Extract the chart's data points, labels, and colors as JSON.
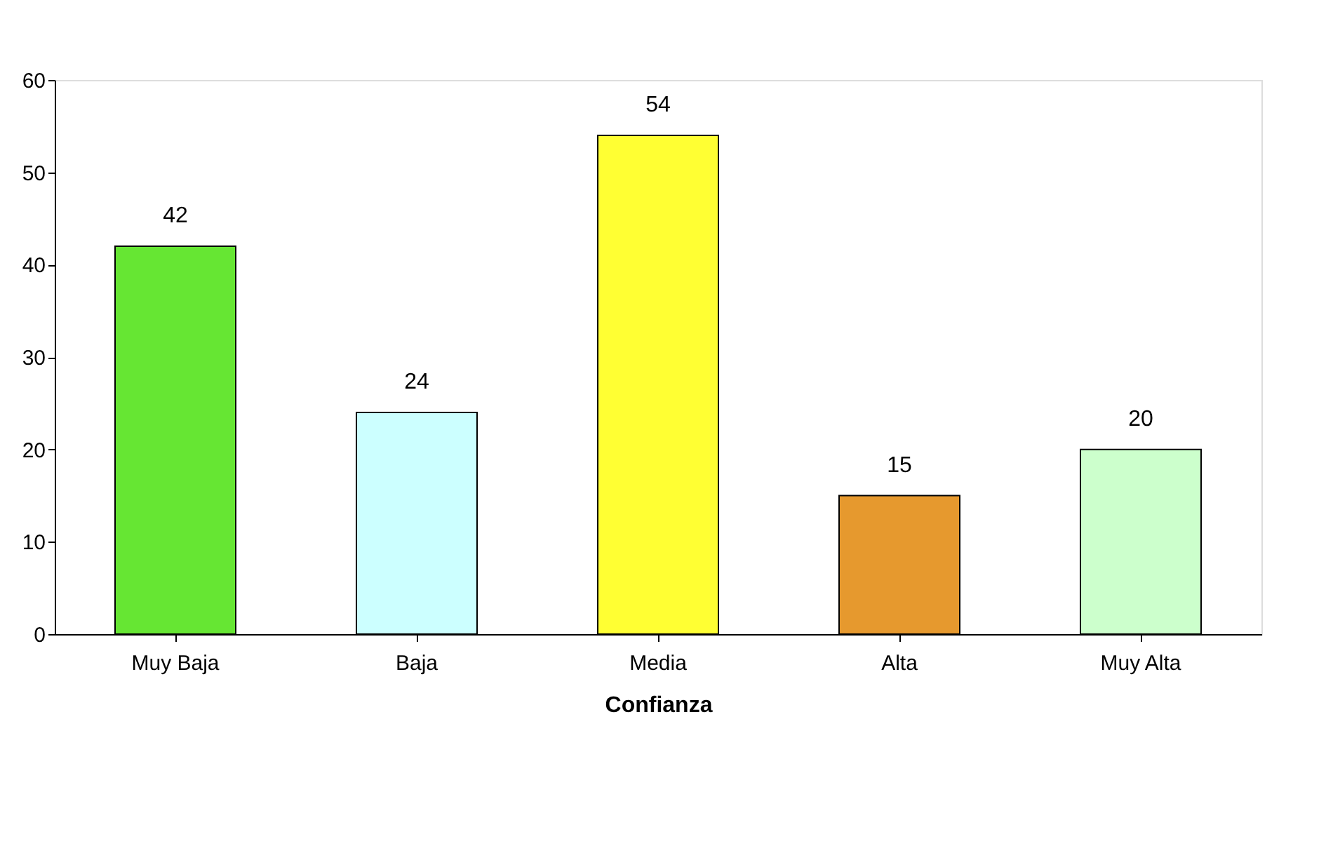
{
  "chart_data": {
    "type": "bar",
    "xlabel": "Confianza",
    "categories": [
      "Muy Baja",
      "Baja",
      "Media",
      "Alta",
      "Muy Alta"
    ],
    "values": [
      42,
      24,
      54,
      15,
      20
    ],
    "colors": [
      "#66e633",
      "#ccffff",
      "#ffff33",
      "#e6992e",
      "#ccffcc"
    ],
    "ylim": [
      0,
      60
    ],
    "yticks": [
      0,
      10,
      20,
      30,
      40,
      50,
      60
    ],
    "data_labels": true,
    "grid": false
  }
}
